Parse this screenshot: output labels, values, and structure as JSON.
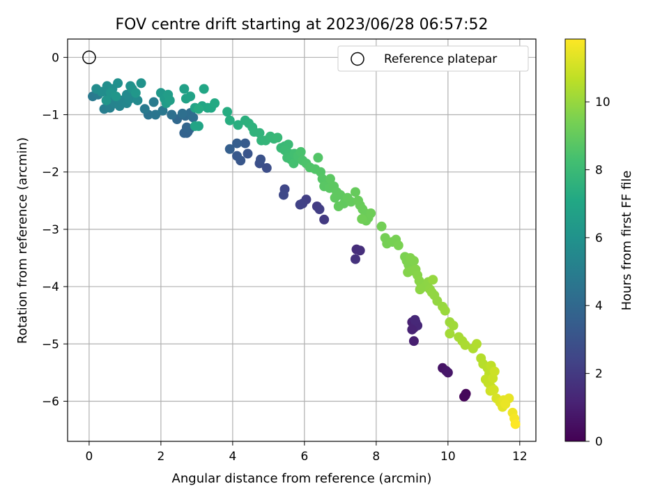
{
  "chart_data": {
    "type": "scatter",
    "title": "FOV centre drift starting at 2023/06/28 06:57:52",
    "xlabel": "Angular distance from reference (arcmin)",
    "ylabel": "Rotation from reference (arcmin)",
    "xlim": [
      -0.6,
      12.45
    ],
    "ylim": [
      -6.7,
      0.32
    ],
    "x_ticks": [
      0,
      2,
      4,
      6,
      8,
      10,
      12
    ],
    "y_ticks": [
      0,
      -1,
      -2,
      -3,
      -4,
      -5,
      -6
    ],
    "x_tick_labels": [
      "0",
      "2",
      "4",
      "6",
      "8",
      "10",
      "12"
    ],
    "y_tick_labels": [
      "0",
      "−1",
      "−2",
      "−3",
      "−4",
      "−5",
      "−6"
    ],
    "grid": true,
    "legend": {
      "position": "top-right",
      "entries": [
        "Reference platepar"
      ]
    },
    "reference_point": {
      "x": 0,
      "y": 0
    },
    "colorbar": {
      "label": "Hours from first FF file",
      "colormap": "viridis",
      "range": [
        0,
        11.85
      ],
      "ticks": [
        0,
        2,
        4,
        6,
        8,
        10
      ],
      "tick_labels": [
        "0",
        "2",
        "4",
        "6",
        "8",
        "10"
      ]
    },
    "points": [
      [
        10.45,
        -5.92,
        0.1
      ],
      [
        10.5,
        -5.87,
        0.15
      ],
      [
        10.48,
        -5.9,
        0.2
      ],
      [
        9.85,
        -5.42,
        0.6
      ],
      [
        9.95,
        -5.47,
        0.7
      ],
      [
        10.0,
        -5.5,
        0.75
      ],
      [
        9.05,
        -4.95,
        1.0
      ],
      [
        9.0,
        -4.62,
        1.1
      ],
      [
        9.05,
        -4.72,
        1.2
      ],
      [
        9.1,
        -4.62,
        1.25
      ],
      [
        9.15,
        -4.68,
        1.3
      ],
      [
        9.0,
        -4.75,
        1.15
      ],
      [
        9.08,
        -4.58,
        1.35
      ],
      [
        7.45,
        -3.35,
        1.5
      ],
      [
        7.55,
        -3.37,
        1.6
      ],
      [
        7.42,
        -3.52,
        1.7
      ],
      [
        6.55,
        -2.83,
        2.0
      ],
      [
        6.35,
        -2.6,
        2.1
      ],
      [
        6.42,
        -2.65,
        2.15
      ],
      [
        6.05,
        -2.48,
        2.2
      ],
      [
        5.95,
        -2.55,
        2.25
      ],
      [
        5.88,
        -2.57,
        2.3
      ],
      [
        5.45,
        -2.3,
        2.5
      ],
      [
        5.42,
        -2.4,
        2.6
      ],
      [
        4.95,
        -1.93,
        2.8
      ],
      [
        4.75,
        -1.85,
        2.9
      ],
      [
        4.78,
        -1.78,
        3.0
      ],
      [
        4.42,
        -1.68,
        3.1
      ],
      [
        4.22,
        -1.8,
        3.2
      ],
      [
        4.12,
        -1.72,
        3.3
      ],
      [
        4.35,
        -1.5,
        3.4
      ],
      [
        4.12,
        -1.5,
        3.5
      ],
      [
        3.92,
        -1.6,
        3.55
      ],
      [
        2.75,
        -1.3,
        3.6
      ],
      [
        2.72,
        -1.32,
        3.7
      ],
      [
        2.65,
        -1.32,
        3.75
      ],
      [
        2.8,
        -1.25,
        3.8
      ],
      [
        2.72,
        -1.22,
        3.85
      ],
      [
        2.45,
        -1.08,
        4.0
      ],
      [
        2.68,
        -1.02,
        4.1
      ],
      [
        2.82,
        -0.97,
        4.2
      ],
      [
        2.6,
        -0.98,
        4.3
      ],
      [
        2.9,
        -1.05,
        4.25
      ],
      [
        2.3,
        -1.0,
        4.35
      ],
      [
        1.65,
        -1.0,
        4.5
      ],
      [
        1.85,
        -1.0,
        4.6
      ],
      [
        2.05,
        -0.93,
        4.7
      ],
      [
        1.55,
        -0.9,
        4.8
      ],
      [
        1.8,
        -0.78,
        4.9
      ],
      [
        0.1,
        -0.68,
        4.8
      ],
      [
        0.25,
        -0.65,
        4.9
      ],
      [
        0.42,
        -0.9,
        5.0
      ],
      [
        0.58,
        -0.88,
        5.1
      ],
      [
        0.55,
        -0.7,
        5.2
      ],
      [
        0.72,
        -0.8,
        5.25
      ],
      [
        0.85,
        -0.85,
        5.3
      ],
      [
        0.9,
        -0.75,
        5.35
      ],
      [
        1.05,
        -0.8,
        5.4
      ],
      [
        1.12,
        -0.73,
        5.5
      ],
      [
        1.05,
        -0.65,
        5.55
      ],
      [
        1.35,
        -0.75,
        5.6
      ],
      [
        0.2,
        -0.55,
        5.7
      ],
      [
        0.35,
        -0.6,
        5.75
      ],
      [
        0.5,
        -0.5,
        5.8
      ],
      [
        0.65,
        -0.55,
        5.85
      ],
      [
        0.8,
        -0.45,
        5.9
      ],
      [
        1.15,
        -0.5,
        5.95
      ],
      [
        1.45,
        -0.45,
        6.0
      ],
      [
        1.2,
        -0.55,
        6.05
      ],
      [
        0.6,
        -0.62,
        6.1
      ],
      [
        0.48,
        -0.75,
        6.15
      ],
      [
        0.75,
        -0.68,
        6.2
      ],
      [
        1.3,
        -0.62,
        6.25
      ],
      [
        2.0,
        -0.62,
        6.3
      ],
      [
        2.1,
        -0.72,
        6.4
      ],
      [
        2.15,
        -0.8,
        6.5
      ],
      [
        2.2,
        -0.65,
        6.55
      ],
      [
        2.25,
        -0.75,
        6.6
      ],
      [
        2.65,
        -0.55,
        6.7
      ],
      [
        2.7,
        -0.72,
        6.75
      ],
      [
        2.82,
        -0.68,
        6.8
      ],
      [
        2.95,
        -0.88,
        6.85
      ],
      [
        3.05,
        -1.2,
        6.9
      ],
      [
        2.95,
        -1.2,
        6.92
      ],
      [
        3.15,
        -0.85,
        6.95
      ],
      [
        3.2,
        -0.55,
        7.0
      ],
      [
        3.3,
        -0.88,
        7.05
      ],
      [
        3.4,
        -0.88,
        7.1
      ],
      [
        3.5,
        -0.8,
        7.15
      ],
      [
        3.05,
        -0.9,
        7.2
      ],
      [
        3.85,
        -0.95,
        7.3
      ],
      [
        3.92,
        -1.1,
        7.35
      ],
      [
        4.15,
        -1.18,
        7.4
      ],
      [
        4.35,
        -1.1,
        7.45
      ],
      [
        4.45,
        -1.15,
        7.5
      ],
      [
        4.55,
        -1.22,
        7.55
      ],
      [
        4.6,
        -1.3,
        7.6
      ],
      [
        4.75,
        -1.32,
        7.65
      ],
      [
        4.8,
        -1.45,
        7.7
      ],
      [
        4.92,
        -1.45,
        7.75
      ],
      [
        5.05,
        -1.38,
        7.8
      ],
      [
        5.15,
        -1.42,
        7.85
      ],
      [
        5.25,
        -1.4,
        7.9
      ],
      [
        5.35,
        -1.58,
        7.92
      ],
      [
        5.45,
        -1.55,
        7.95
      ],
      [
        5.55,
        -1.52,
        8.0
      ],
      [
        5.45,
        -1.62,
        8.05
      ],
      [
        5.58,
        -1.68,
        8.1
      ],
      [
        5.52,
        -1.75,
        8.15
      ],
      [
        5.62,
        -1.78,
        8.2
      ],
      [
        5.72,
        -1.68,
        8.25
      ],
      [
        5.7,
        -1.85,
        8.3
      ],
      [
        5.82,
        -1.72,
        8.35
      ],
      [
        5.9,
        -1.65,
        8.4
      ],
      [
        5.95,
        -1.8,
        8.45
      ],
      [
        6.05,
        -1.85,
        8.5
      ],
      [
        6.15,
        -1.92,
        8.55
      ],
      [
        6.3,
        -1.95,
        8.6
      ],
      [
        6.38,
        -1.75,
        8.62
      ],
      [
        6.45,
        -2.0,
        8.65
      ],
      [
        6.5,
        -2.12,
        8.7
      ],
      [
        6.6,
        -2.18,
        8.72
      ],
      [
        6.55,
        -2.25,
        8.75
      ],
      [
        6.7,
        -2.28,
        8.8
      ],
      [
        6.72,
        -2.12,
        8.82
      ],
      [
        6.82,
        -2.25,
        8.85
      ],
      [
        6.9,
        -2.35,
        8.88
      ],
      [
        6.85,
        -2.45,
        8.9
      ],
      [
        7.0,
        -2.4,
        8.92
      ],
      [
        7.1,
        -2.55,
        8.95
      ],
      [
        6.95,
        -2.6,
        8.97
      ],
      [
        7.2,
        -2.45,
        9.0
      ],
      [
        7.3,
        -2.52,
        9.02
      ],
      [
        7.42,
        -2.35,
        9.05
      ],
      [
        7.5,
        -2.5,
        9.08
      ],
      [
        7.55,
        -2.58,
        9.1
      ],
      [
        7.62,
        -2.65,
        9.12
      ],
      [
        7.7,
        -2.72,
        9.15
      ],
      [
        7.78,
        -2.8,
        9.18
      ],
      [
        7.72,
        -2.85,
        9.2
      ],
      [
        7.85,
        -2.72,
        9.22
      ],
      [
        7.6,
        -2.82,
        9.25
      ],
      [
        8.15,
        -2.95,
        9.3
      ],
      [
        8.25,
        -3.15,
        9.35
      ],
      [
        8.3,
        -3.25,
        9.38
      ],
      [
        8.45,
        -3.22,
        9.4
      ],
      [
        8.55,
        -3.18,
        9.42
      ],
      [
        8.62,
        -3.28,
        9.45
      ],
      [
        8.8,
        -3.48,
        9.5
      ],
      [
        8.85,
        -3.55,
        9.52
      ],
      [
        8.9,
        -3.62,
        9.55
      ],
      [
        8.95,
        -3.5,
        9.58
      ],
      [
        9.05,
        -3.55,
        9.6
      ],
      [
        9.0,
        -3.72,
        9.62
      ],
      [
        8.88,
        -3.75,
        9.65
      ],
      [
        9.1,
        -3.7,
        9.68
      ],
      [
        9.15,
        -3.8,
        9.7
      ],
      [
        9.2,
        -3.9,
        9.72
      ],
      [
        9.25,
        -3.95,
        9.75
      ],
      [
        9.35,
        -4.0,
        9.78
      ],
      [
        9.22,
        -4.05,
        9.8
      ],
      [
        9.45,
        -3.92,
        9.82
      ],
      [
        9.5,
        -4.05,
        9.85
      ],
      [
        9.55,
        -4.1,
        9.88
      ],
      [
        9.62,
        -4.15,
        9.9
      ],
      [
        9.7,
        -4.25,
        9.92
      ],
      [
        9.58,
        -3.88,
        9.95
      ],
      [
        9.85,
        -4.35,
        10.0
      ],
      [
        9.92,
        -4.42,
        10.05
      ],
      [
        10.05,
        -4.62,
        10.1
      ],
      [
        10.15,
        -4.68,
        10.15
      ],
      [
        10.05,
        -4.82,
        10.2
      ],
      [
        10.3,
        -4.88,
        10.25
      ],
      [
        10.4,
        -4.95,
        10.3
      ],
      [
        10.48,
        -5.02,
        10.35
      ],
      [
        10.7,
        -5.08,
        10.4
      ],
      [
        10.8,
        -5.0,
        10.45
      ],
      [
        10.92,
        -5.25,
        10.5
      ],
      [
        10.98,
        -5.35,
        10.55
      ],
      [
        11.1,
        -5.42,
        10.6
      ],
      [
        11.15,
        -5.52,
        10.65
      ],
      [
        11.2,
        -5.38,
        10.7
      ],
      [
        11.05,
        -5.62,
        10.75
      ],
      [
        11.12,
        -5.68,
        10.8
      ],
      [
        11.2,
        -5.75,
        10.85
      ],
      [
        11.25,
        -5.6,
        10.9
      ],
      [
        11.3,
        -5.48,
        10.95
      ],
      [
        11.18,
        -5.82,
        11.0
      ],
      [
        11.28,
        -5.8,
        11.05
      ],
      [
        11.35,
        -5.95,
        11.15
      ],
      [
        11.45,
        -6.02,
        11.25
      ],
      [
        11.52,
        -6.1,
        11.35
      ],
      [
        11.55,
        -5.98,
        11.4
      ],
      [
        11.7,
        -5.95,
        11.45
      ],
      [
        11.6,
        -6.05,
        11.5
      ],
      [
        11.8,
        -6.2,
        11.6
      ],
      [
        11.85,
        -6.3,
        11.7
      ],
      [
        11.88,
        -6.4,
        11.85
      ]
    ]
  }
}
